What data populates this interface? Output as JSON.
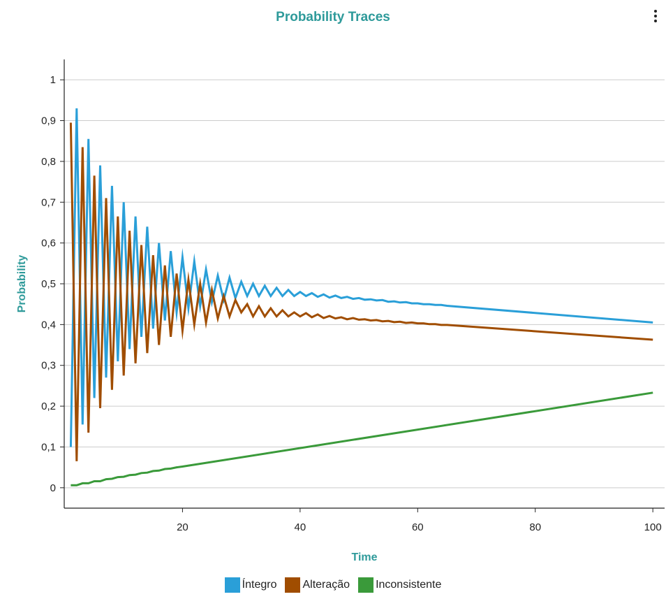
{
  "chart_data": {
    "type": "line",
    "title": "Probability Traces",
    "xlabel": "Time",
    "ylabel": "Probability",
    "xlim": [
      0,
      102
    ],
    "ylim": [
      -0.05,
      1.05
    ],
    "xticks": [
      20,
      40,
      60,
      80,
      100
    ],
    "xtick_labels": [
      "20",
      "40",
      "60",
      "80",
      "100"
    ],
    "yticks": [
      0,
      0.1,
      0.2,
      0.3,
      0.4,
      0.5,
      0.6,
      0.7,
      0.8,
      0.9,
      1
    ],
    "ytick_labels": [
      "0",
      "0,1",
      "0,2",
      "0,3",
      "0,4",
      "0,5",
      "0,6",
      "0,7",
      "0,8",
      "0,9",
      "1"
    ],
    "grid": "horizontal",
    "legend_position": "bottom",
    "series": [
      {
        "name": "Íntegro",
        "color": "#2a9fd8",
        "x": [
          1,
          2,
          3,
          4,
          5,
          6,
          7,
          8,
          9,
          10,
          11,
          12,
          13,
          14,
          15,
          16,
          17,
          18,
          19,
          20,
          21,
          22,
          23,
          24,
          25,
          26,
          27,
          28,
          29,
          30,
          31,
          32,
          33,
          34,
          35,
          36,
          37,
          38,
          39,
          40,
          41,
          42,
          43,
          44,
          45,
          46,
          47,
          48,
          49,
          50,
          51,
          52,
          53,
          54,
          55,
          56,
          57,
          58,
          59,
          60,
          61,
          62,
          63,
          64,
          65,
          100
        ],
        "y": [
          0.1,
          0.93,
          0.155,
          0.855,
          0.22,
          0.79,
          0.27,
          0.74,
          0.31,
          0.7,
          0.34,
          0.665,
          0.37,
          0.64,
          0.39,
          0.6,
          0.41,
          0.58,
          0.43,
          0.565,
          0.44,
          0.555,
          0.445,
          0.535,
          0.455,
          0.52,
          0.46,
          0.515,
          0.465,
          0.505,
          0.47,
          0.5,
          0.47,
          0.495,
          0.47,
          0.49,
          0.47,
          0.485,
          0.47,
          0.48,
          0.47,
          0.477,
          0.468,
          0.474,
          0.466,
          0.471,
          0.465,
          0.468,
          0.463,
          0.465,
          0.461,
          0.462,
          0.459,
          0.46,
          0.456,
          0.457,
          0.454,
          0.455,
          0.452,
          0.452,
          0.45,
          0.45,
          0.448,
          0.448,
          0.446,
          0.405
        ]
      },
      {
        "name": "Alteração",
        "color": "#a04d00",
        "x": [
          1,
          2,
          3,
          4,
          5,
          6,
          7,
          8,
          9,
          10,
          11,
          12,
          13,
          14,
          15,
          16,
          17,
          18,
          19,
          20,
          21,
          22,
          23,
          24,
          25,
          26,
          27,
          28,
          29,
          30,
          31,
          32,
          33,
          34,
          35,
          36,
          37,
          38,
          39,
          40,
          41,
          42,
          43,
          44,
          45,
          46,
          47,
          48,
          49,
          50,
          51,
          52,
          53,
          54,
          55,
          56,
          57,
          58,
          59,
          60,
          61,
          62,
          63,
          64,
          65,
          100
        ],
        "y": [
          0.895,
          0.065,
          0.835,
          0.135,
          0.765,
          0.195,
          0.71,
          0.24,
          0.665,
          0.275,
          0.63,
          0.305,
          0.595,
          0.33,
          0.57,
          0.35,
          0.545,
          0.37,
          0.525,
          0.385,
          0.51,
          0.4,
          0.5,
          0.405,
          0.485,
          0.415,
          0.47,
          0.42,
          0.46,
          0.43,
          0.45,
          0.42,
          0.445,
          0.42,
          0.44,
          0.42,
          0.435,
          0.42,
          0.43,
          0.42,
          0.428,
          0.418,
          0.425,
          0.416,
          0.421,
          0.415,
          0.418,
          0.413,
          0.416,
          0.412,
          0.413,
          0.41,
          0.411,
          0.408,
          0.409,
          0.406,
          0.407,
          0.404,
          0.405,
          0.403,
          0.403,
          0.401,
          0.401,
          0.399,
          0.399,
          0.363
        ]
      },
      {
        "name": "Inconsistente",
        "color": "#3a9a3a",
        "x": [
          1,
          2,
          3,
          4,
          5,
          6,
          7,
          8,
          9,
          10,
          11,
          12,
          13,
          14,
          15,
          16,
          17,
          18,
          19,
          20,
          100
        ],
        "y": [
          0.006,
          0.006,
          0.011,
          0.011,
          0.016,
          0.016,
          0.021,
          0.022,
          0.026,
          0.027,
          0.031,
          0.032,
          0.036,
          0.037,
          0.041,
          0.042,
          0.046,
          0.047,
          0.05,
          0.052,
          0.233
        ]
      }
    ]
  }
}
